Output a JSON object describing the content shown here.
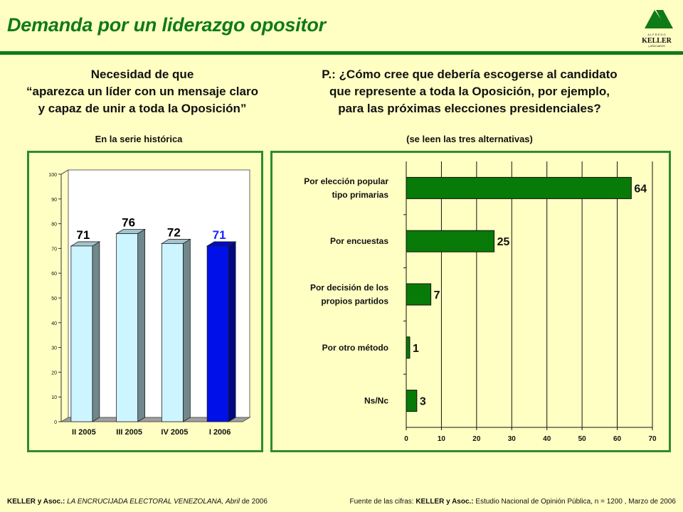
{
  "page": {
    "title": "Demanda por un liderazgo opositor",
    "logo": {
      "letters": "A L F R E D O",
      "name": "KELLER",
      "sub": "y ASOCIADOS"
    }
  },
  "left": {
    "heading_1": "Necesidad de que",
    "heading_2": "“aparezca un líder con un mensaje claro",
    "heading_3": "y capaz de unir a toda la Oposición”",
    "subtitle": "En la serie histórica"
  },
  "right": {
    "heading_1": "P.: ¿Cómo cree que debería escogerse al candidato",
    "heading_2": "que represente a toda la Oposición, por ejemplo,",
    "heading_3": "para las próximas elecciones presidenciales?",
    "subtitle": "(se leen las tres alternativas)"
  },
  "chart_data": [
    {
      "type": "bar",
      "orientation": "vertical",
      "style": "3d",
      "categories": [
        "II 2005",
        "III 2005",
        "IV 2005",
        "I 2006"
      ],
      "values": [
        71,
        76,
        72,
        71
      ],
      "ylim": [
        0,
        100
      ],
      "yticks": [
        "0",
        "10",
        "20",
        "30",
        "40",
        "50",
        "60",
        "70",
        "80",
        "90",
        "100"
      ],
      "grid": false,
      "bar_colors": [
        "#ccf5ff",
        "#ccf5ff",
        "#ccf5ff",
        "#0010e8"
      ],
      "label_colors": [
        "#000000",
        "#000000",
        "#000000",
        "#1a25ff"
      ]
    },
    {
      "type": "bar",
      "orientation": "horizontal",
      "categories": [
        [
          "Por elección popular",
          "tipo primarias"
        ],
        [
          "Por encuestas"
        ],
        [
          "Por decisión de los",
          "propios partidos"
        ],
        [
          "Por otro método"
        ],
        [
          "Ns/Nc"
        ]
      ],
      "values": [
        64,
        25,
        7,
        1,
        3
      ],
      "xlim": [
        0,
        70
      ],
      "xticks": [
        "0",
        "10",
        "20",
        "30",
        "40",
        "50",
        "60",
        "70"
      ],
      "grid": true,
      "bar_color": "#087a08"
    }
  ],
  "footer": {
    "left_bold": "KELLER y Asoc.:",
    "left_italic": "LA ENCRUCIJADA ELECTORAL VENEZOLANA,",
    "left_italic_2": "Abril",
    "left_rest": "de 2006",
    "right_plain": "Fuente de las cifras:",
    "right_bold": "KELLER y Asoc.:",
    "right_rest": "Estudio Nacional de Opinión Pública, n = 1200 , Marzo de 2006"
  },
  "colors": {
    "accent": "#0f7a18",
    "background": "#ffffc3",
    "panel_border": "#2e8b2e"
  }
}
